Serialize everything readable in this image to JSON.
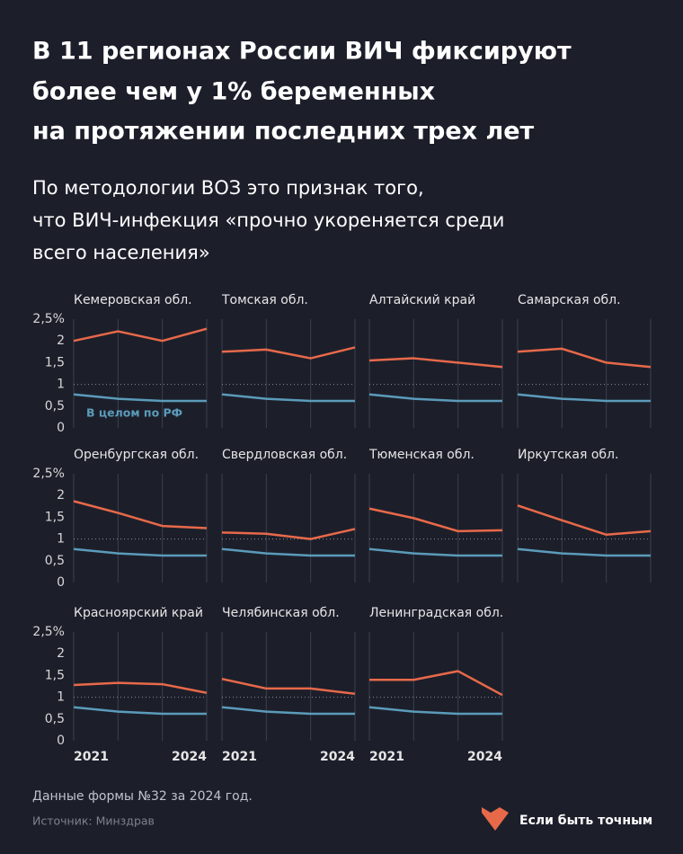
{
  "title": [
    "В 11 регионах России ВИЧ фиксируют",
    "более чем у 1% беременных",
    "на протяжении последних трех лет"
  ],
  "subtitle": [
    "По методологии ВОЗ это признак того,",
    "что ВИЧ-инфекция «прочно укореняется среди",
    "всего населения»"
  ],
  "chart_data": [
    {
      "type": "line",
      "title": "Кемеровская обл.",
      "x": [
        2021,
        2022,
        2023,
        2024
      ],
      "xlim": [
        2021,
        2024
      ],
      "ylim": [
        0,
        2.5
      ],
      "yticks": [
        0,
        {
          "value": 0.5,
          "label": "0,5"
        },
        1,
        {
          "value": 1.5,
          "label": "1,5"
        },
        2,
        {
          "value": 2.5,
          "label": "2,5%"
        }
      ],
      "threshold": 1,
      "series": [
        {
          "color": "#e8694a",
          "values": [
            2.0,
            2.22,
            2.0,
            2.28
          ]
        },
        {
          "name": "В целом по РФ",
          "color": "#5b9bba",
          "values": [
            0.77,
            0.67,
            0.62,
            0.62
          ]
        }
      ]
    },
    {
      "type": "line",
      "title": "Томская обл.",
      "x": [
        2021,
        2022,
        2023,
        2024
      ],
      "xlim": [
        2021,
        2024
      ],
      "ylim": [
        0,
        2.5
      ],
      "threshold": 1,
      "series": [
        {
          "color": "#e8694a",
          "values": [
            1.75,
            1.8,
            1.6,
            1.85
          ]
        },
        {
          "color": "#5b9bba",
          "values": [
            0.77,
            0.67,
            0.62,
            0.62
          ]
        }
      ]
    },
    {
      "type": "line",
      "title": "Алтайский край",
      "x": [
        2021,
        2022,
        2023,
        2024
      ],
      "xlim": [
        2021,
        2024
      ],
      "ylim": [
        0,
        2.5
      ],
      "threshold": 1,
      "series": [
        {
          "color": "#e8694a",
          "values": [
            1.55,
            1.6,
            1.5,
            1.4
          ]
        },
        {
          "color": "#5b9bba",
          "values": [
            0.77,
            0.67,
            0.62,
            0.62
          ]
        }
      ]
    },
    {
      "type": "line",
      "title": "Самарская обл.",
      "x": [
        2021,
        2022,
        2023,
        2024
      ],
      "xlim": [
        2021,
        2024
      ],
      "ylim": [
        0,
        2.5
      ],
      "threshold": 1,
      "series": [
        {
          "color": "#e8694a",
          "values": [
            1.75,
            1.82,
            1.5,
            1.4
          ]
        },
        {
          "color": "#5b9bba",
          "values": [
            0.77,
            0.67,
            0.62,
            0.62
          ]
        }
      ]
    },
    {
      "type": "line",
      "title": "Оренбургская обл.",
      "x": [
        2021,
        2022,
        2023,
        2024
      ],
      "xlim": [
        2021,
        2024
      ],
      "ylim": [
        0,
        2.5
      ],
      "yticks": [
        0,
        {
          "value": 0.5,
          "label": "0,5"
        },
        1,
        {
          "value": 1.5,
          "label": "1,5"
        },
        2,
        {
          "value": 2.5,
          "label": "2,5%"
        }
      ],
      "threshold": 1,
      "series": [
        {
          "color": "#e8694a",
          "values": [
            1.87,
            1.6,
            1.3,
            1.25
          ]
        },
        {
          "color": "#5b9bba",
          "values": [
            0.77,
            0.67,
            0.62,
            0.62
          ]
        }
      ]
    },
    {
      "type": "line",
      "title": "Свердловская обл.",
      "x": [
        2021,
        2022,
        2023,
        2024
      ],
      "xlim": [
        2021,
        2024
      ],
      "ylim": [
        0,
        2.5
      ],
      "threshold": 1,
      "series": [
        {
          "color": "#e8694a",
          "values": [
            1.15,
            1.12,
            1.0,
            1.23
          ]
        },
        {
          "color": "#5b9bba",
          "values": [
            0.77,
            0.67,
            0.62,
            0.62
          ]
        }
      ]
    },
    {
      "type": "line",
      "title": "Тюменская обл.",
      "x": [
        2021,
        2022,
        2023,
        2024
      ],
      "xlim": [
        2021,
        2024
      ],
      "ylim": [
        0,
        2.5
      ],
      "threshold": 1,
      "series": [
        {
          "color": "#e8694a",
          "values": [
            1.7,
            1.48,
            1.18,
            1.2
          ]
        },
        {
          "color": "#5b9bba",
          "values": [
            0.77,
            0.67,
            0.62,
            0.62
          ]
        }
      ]
    },
    {
      "type": "line",
      "title": "Иркутская обл.",
      "x": [
        2021,
        2022,
        2023,
        2024
      ],
      "xlim": [
        2021,
        2024
      ],
      "ylim": [
        0,
        2.5
      ],
      "threshold": 1,
      "series": [
        {
          "color": "#e8694a",
          "values": [
            1.77,
            1.43,
            1.1,
            1.18
          ]
        },
        {
          "color": "#5b9bba",
          "values": [
            0.77,
            0.67,
            0.62,
            0.62
          ]
        }
      ]
    },
    {
      "type": "line",
      "title": "Красноярский край",
      "x": [
        2021,
        2022,
        2023,
        2024
      ],
      "xlim": [
        2021,
        2024
      ],
      "ylim": [
        0,
        2.5
      ],
      "yticks": [
        0,
        {
          "value": 0.5,
          "label": "0,5"
        },
        1,
        {
          "value": 1.5,
          "label": "1,5"
        },
        2,
        {
          "value": 2.5,
          "label": "2,5%"
        }
      ],
      "xticks": [
        2021,
        2024
      ],
      "threshold": 1,
      "series": [
        {
          "color": "#e8694a",
          "values": [
            1.28,
            1.33,
            1.3,
            1.1
          ]
        },
        {
          "color": "#5b9bba",
          "values": [
            0.77,
            0.67,
            0.62,
            0.62
          ]
        }
      ]
    },
    {
      "type": "line",
      "title": "Челябинская обл.",
      "x": [
        2021,
        2022,
        2023,
        2024
      ],
      "xlim": [
        2021,
        2024
      ],
      "ylim": [
        0,
        2.5
      ],
      "xticks": [
        2021,
        2024
      ],
      "threshold": 1,
      "series": [
        {
          "color": "#e8694a",
          "values": [
            1.42,
            1.2,
            1.2,
            1.08
          ]
        },
        {
          "color": "#5b9bba",
          "values": [
            0.77,
            0.67,
            0.62,
            0.62
          ]
        }
      ]
    },
    {
      "type": "line",
      "title": "Ленинградская обл.",
      "x": [
        2021,
        2022,
        2023,
        2024
      ],
      "xlim": [
        2021,
        2024
      ],
      "ylim": [
        0,
        2.5
      ],
      "xticks": [
        2021,
        2024
      ],
      "threshold": 1,
      "series": [
        {
          "color": "#e8694a",
          "values": [
            1.4,
            1.4,
            1.6,
            1.05
          ]
        },
        {
          "color": "#5b9bba",
          "values": [
            0.77,
            0.67,
            0.62,
            0.62
          ]
        }
      ]
    }
  ],
  "footnote": "Данные формы №32 за 2024 год.",
  "source": "Источник: Минздрав",
  "brand": "Если быть точным"
}
